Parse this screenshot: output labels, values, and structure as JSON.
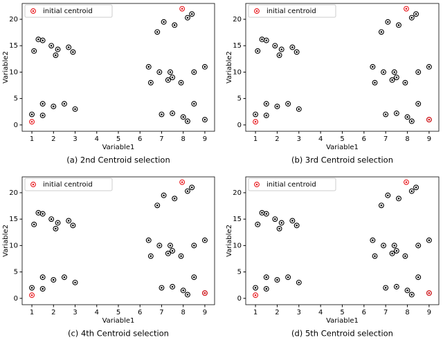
{
  "chart_data": [
    {
      "type": "scatter",
      "caption": "(a) 2nd Centroid selection",
      "xlabel": "Variable1",
      "ylabel": "Variable2",
      "xlim": [
        0.55,
        9.45
      ],
      "ylim": [
        -1.2,
        23
      ],
      "xticks": [
        1,
        2,
        3,
        4,
        5,
        6,
        7,
        8,
        9
      ],
      "yticks": [
        0,
        5,
        10,
        15,
        20
      ],
      "legend": "upper left",
      "series": [
        {
          "color": "#000000",
          "x": [
            1,
            1.1,
            1.3,
            1.5,
            1.5,
            1.5,
            1.9,
            2,
            2.1,
            2.2,
            2.5,
            2.7,
            2.9,
            3,
            6.4,
            6.5,
            6.8,
            6.9,
            7,
            7.1,
            7.3,
            7.4,
            7.5,
            7.5,
            7.6,
            7.9,
            8,
            8.2,
            8.2,
            8.4,
            8.5,
            8.5,
            9,
            9
          ],
          "y": [
            2,
            14,
            16.2,
            16,
            4,
            1.8,
            15,
            3.5,
            13.2,
            14.3,
            4,
            14.7,
            13.8,
            3,
            11,
            8,
            17.6,
            10,
            2,
            19.5,
            8.5,
            10,
            9,
            2.2,
            18.9,
            8,
            1.5,
            20.3,
            0.7,
            21,
            10,
            4,
            11,
            1
          ]
        },
        {
          "name": "initial centroid",
          "color": "#e8161b",
          "x": [
            1,
            7.95
          ],
          "y": [
            0.6,
            22
          ]
        }
      ]
    },
    {
      "type": "scatter",
      "caption": "(b) 3rd Centroid selection",
      "xlabel": "Variable1",
      "ylabel": "Variable2",
      "xlim": [
        0.55,
        9.45
      ],
      "ylim": [
        -1.2,
        23
      ],
      "xticks": [
        1,
        2,
        3,
        4,
        5,
        6,
        7,
        8,
        9
      ],
      "yticks": [
        0,
        5,
        10,
        15,
        20
      ],
      "legend": "upper left",
      "series": [
        {
          "color": "#000000",
          "x": [
            1,
            1.1,
            1.3,
            1.5,
            1.5,
            1.5,
            1.9,
            2,
            2.1,
            2.2,
            2.5,
            2.7,
            2.9,
            3,
            6.4,
            6.5,
            6.8,
            6.9,
            7,
            7.1,
            7.3,
            7.4,
            7.5,
            7.5,
            7.6,
            7.9,
            8,
            8.2,
            8.2,
            8.4,
            8.5,
            8.5,
            9,
            9
          ],
          "y": [
            2,
            14,
            16.2,
            16,
            4,
            1.8,
            15,
            3.5,
            13.2,
            14.3,
            4,
            14.7,
            13.8,
            3,
            11,
            8,
            17.6,
            10,
            2,
            19.5,
            8.5,
            10,
            9,
            2.2,
            18.9,
            8,
            1.5,
            20.3,
            0.7,
            21,
            10,
            4,
            11,
            1
          ]
        },
        {
          "name": "initial centroid",
          "color": "#e8161b",
          "x": [
            1,
            7.95,
            9
          ],
          "y": [
            0.6,
            22,
            1
          ]
        }
      ]
    },
    {
      "type": "scatter",
      "caption": "(c) 4th Centroid selection",
      "xlabel": "Variable1",
      "ylabel": "Variable2",
      "xlim": [
        0.55,
        9.45
      ],
      "ylim": [
        -1.2,
        23
      ],
      "xticks": [
        1,
        2,
        3,
        4,
        5,
        6,
        7,
        8,
        9
      ],
      "yticks": [
        0,
        5,
        10,
        15,
        20
      ],
      "legend": "upper left",
      "series": [
        {
          "color": "#000000",
          "x": [
            1,
            1.1,
            1.3,
            1.5,
            1.5,
            1.5,
            1.9,
            2,
            2.1,
            2.2,
            2.5,
            2.7,
            2.9,
            3,
            6.4,
            6.5,
            6.8,
            6.9,
            7,
            7.1,
            7.3,
            7.4,
            7.5,
            7.5,
            7.6,
            7.9,
            8,
            8.2,
            8.2,
            8.4,
            8.5,
            8.5,
            9,
            9
          ],
          "y": [
            2,
            14,
            16.2,
            16,
            4,
            1.8,
            15,
            3.5,
            13.2,
            14.3,
            4,
            14.7,
            13.8,
            3,
            11,
            8,
            17.6,
            10,
            2,
            19.5,
            8.5,
            10,
            9,
            2.2,
            18.9,
            8,
            1.5,
            20.3,
            0.7,
            21,
            10,
            4,
            11,
            1
          ]
        },
        {
          "name": "initial centroid",
          "color": "#e8161b",
          "x": [
            1,
            7.95,
            9
          ],
          "y": [
            0.6,
            22,
            1
          ]
        }
      ]
    },
    {
      "type": "scatter",
      "caption": "(d) 5th Centroid selection",
      "xlabel": "Variable1",
      "ylabel": "Variable2",
      "xlim": [
        0.55,
        9.45
      ],
      "ylim": [
        -1.2,
        23
      ],
      "xticks": [
        1,
        2,
        3,
        4,
        5,
        6,
        7,
        8,
        9
      ],
      "yticks": [
        0,
        5,
        10,
        15,
        20
      ],
      "legend": "upper left",
      "series": [
        {
          "color": "#000000",
          "x": [
            1,
            1.1,
            1.3,
            1.5,
            1.5,
            1.5,
            1.9,
            2,
            2.1,
            2.2,
            2.5,
            2.7,
            2.9,
            3,
            6.4,
            6.5,
            6.8,
            6.9,
            7,
            7.1,
            7.3,
            7.4,
            7.5,
            7.5,
            7.6,
            7.9,
            8,
            8.2,
            8.2,
            8.4,
            8.5,
            8.5,
            9,
            9
          ],
          "y": [
            2,
            14,
            16.2,
            16,
            4,
            1.8,
            15,
            3.5,
            13.2,
            14.3,
            4,
            14.7,
            13.8,
            3,
            11,
            8,
            17.6,
            10,
            2,
            19.5,
            8.5,
            10,
            9,
            2.2,
            18.9,
            8,
            1.5,
            20.3,
            0.7,
            21,
            10,
            4,
            11,
            1
          ]
        },
        {
          "name": "initial centroid",
          "color": "#e8161b",
          "x": [
            1,
            7.95,
            9
          ],
          "y": [
            0.6,
            22,
            1
          ]
        }
      ]
    }
  ]
}
